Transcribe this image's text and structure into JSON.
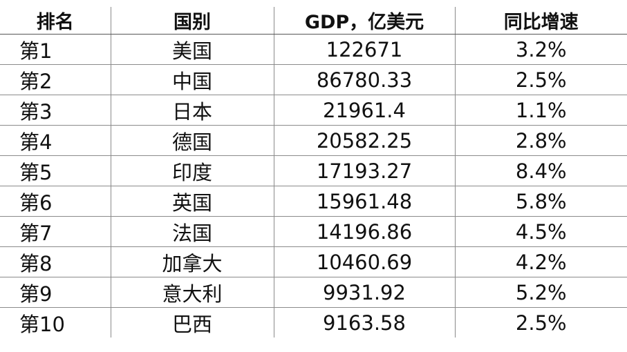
{
  "table": {
    "headers": [
      "排名",
      "国别",
      "GDP，亿美元",
      "同比增速"
    ],
    "rows": [
      [
        "第1",
        "美国",
        "122671",
        "3.2%"
      ],
      [
        "第2",
        "中国",
        "86780.33",
        "2.5%"
      ],
      [
        "第3",
        "日本",
        "21961.4",
        "1.1%"
      ],
      [
        "第4",
        "德国",
        "20582.25",
        "2.8%"
      ],
      [
        "第5",
        "印度",
        "17193.27",
        "8.4%"
      ],
      [
        "第6",
        "英国",
        "15961.48",
        "5.8%"
      ],
      [
        "第7",
        "法国",
        "14196.86",
        "4.5%"
      ],
      [
        "第8",
        "加拿大",
        "10460.69",
        "4.2%"
      ],
      [
        "第9",
        "意大利",
        "9931.92",
        "5.2%"
      ],
      [
        "第10",
        "巴西",
        "9163.58",
        "2.5%"
      ]
    ]
  }
}
